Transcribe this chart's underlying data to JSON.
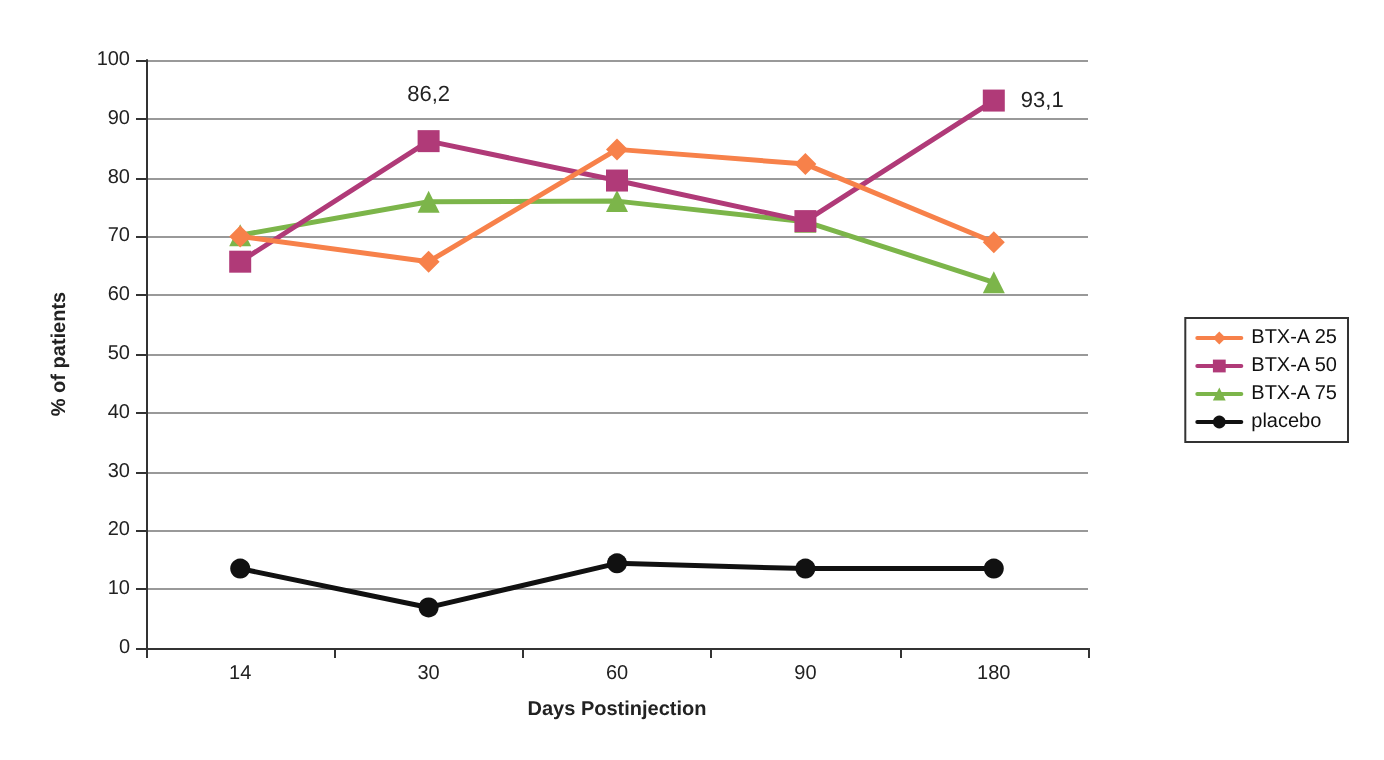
{
  "chart_data": {
    "type": "line",
    "xlabel": "Days Postinjection",
    "ylabel": "% of patients",
    "categories": [
      "14",
      "30",
      "60",
      "90",
      "180"
    ],
    "ylim": [
      0,
      100
    ],
    "yticks": [
      0,
      10,
      20,
      30,
      40,
      50,
      60,
      70,
      80,
      90,
      100
    ],
    "grid": "y",
    "legend": "right",
    "series": [
      {
        "name": "BTX-A 25",
        "color": "#f7814a",
        "marker": "diamond",
        "values": [
          70,
          65.7,
          84.8,
          82.3,
          69
        ]
      },
      {
        "name": "BTX-A 50",
        "color": "#b03a78",
        "marker": "square",
        "values": [
          65.7,
          86.2,
          79.5,
          72.6,
          93.1
        ],
        "value_labels": [
          null,
          "86,2",
          null,
          null,
          "93,1"
        ]
      },
      {
        "name": "BTX-A 75",
        "color": "#7cb54a",
        "marker": "triangle",
        "values": [
          70.2,
          75.9,
          76,
          72.5,
          62.2
        ]
      },
      {
        "name": "placebo",
        "color": "#111111",
        "marker": "circle",
        "values": [
          13.5,
          6.9,
          14.4,
          13.5,
          13.5
        ]
      }
    ]
  }
}
